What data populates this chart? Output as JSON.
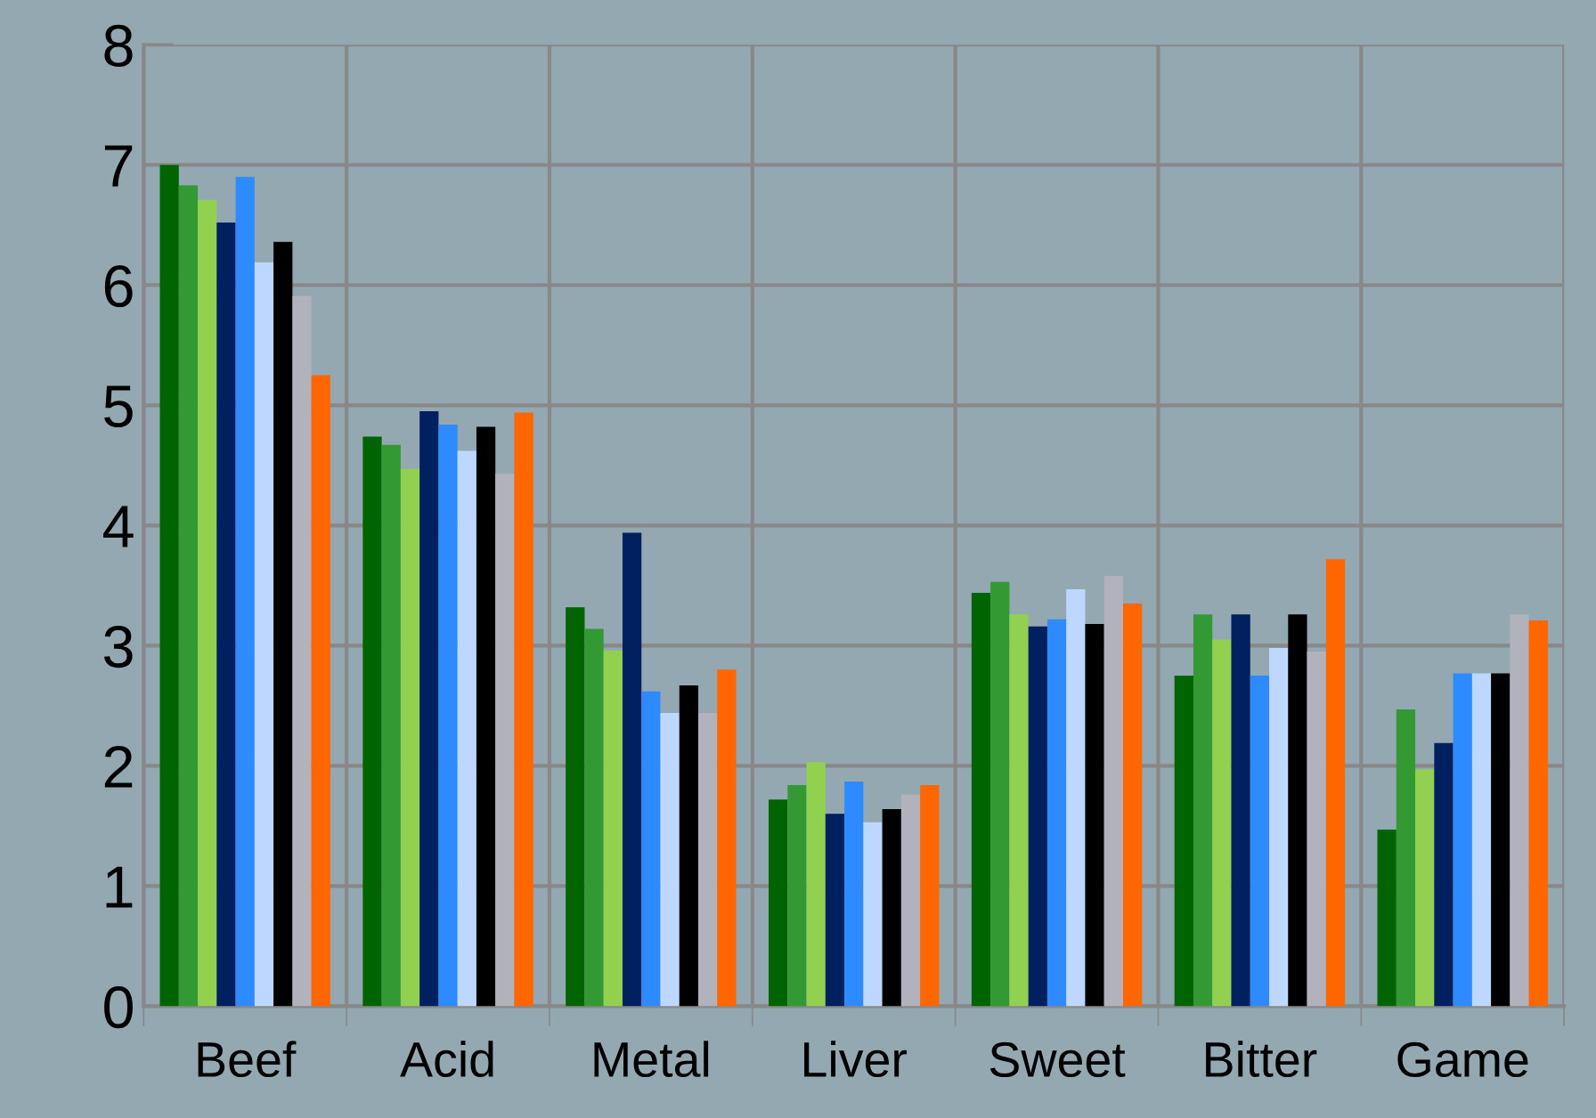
{
  "chart_data": {
    "type": "bar",
    "categories": [
      "Beef",
      "Acid",
      "Metal",
      "Liver",
      "Sweet",
      "Bitter",
      "Game"
    ],
    "series": [
      {
        "color": "#006400",
        "values": [
          7.0,
          4.74,
          3.32,
          1.72,
          3.44,
          2.75,
          1.47
        ]
      },
      {
        "color": "#339933",
        "values": [
          6.83,
          4.67,
          3.14,
          1.84,
          3.53,
          3.26,
          2.47
        ]
      },
      {
        "color": "#92d050",
        "values": [
          6.71,
          4.47,
          2.96,
          2.03,
          3.26,
          3.05,
          1.97
        ]
      },
      {
        "color": "#002060",
        "values": [
          6.52,
          4.95,
          3.94,
          1.6,
          3.16,
          3.26,
          2.19
        ]
      },
      {
        "color": "#2e8bff",
        "values": [
          6.9,
          4.84,
          2.62,
          1.87,
          3.22,
          2.75,
          2.77
        ]
      },
      {
        "color": "#bdd7ff",
        "values": [
          6.19,
          4.62,
          2.44,
          1.53,
          3.47,
          2.98,
          2.77
        ]
      },
      {
        "color": "#000000",
        "values": [
          6.36,
          4.82,
          2.67,
          1.64,
          3.18,
          3.26,
          2.77
        ]
      },
      {
        "color": "#b2b2bc",
        "values": [
          5.91,
          4.43,
          2.44,
          1.76,
          3.58,
          2.95,
          3.26
        ]
      },
      {
        "color": "#ff6600",
        "values": [
          5.25,
          4.94,
          2.8,
          1.84,
          3.35,
          3.72,
          3.21
        ]
      }
    ],
    "ylim": [
      0,
      8
    ],
    "yticks": [
      0,
      1,
      2,
      3,
      4,
      5,
      6,
      7,
      8
    ],
    "grid": true,
    "legend": false
  }
}
